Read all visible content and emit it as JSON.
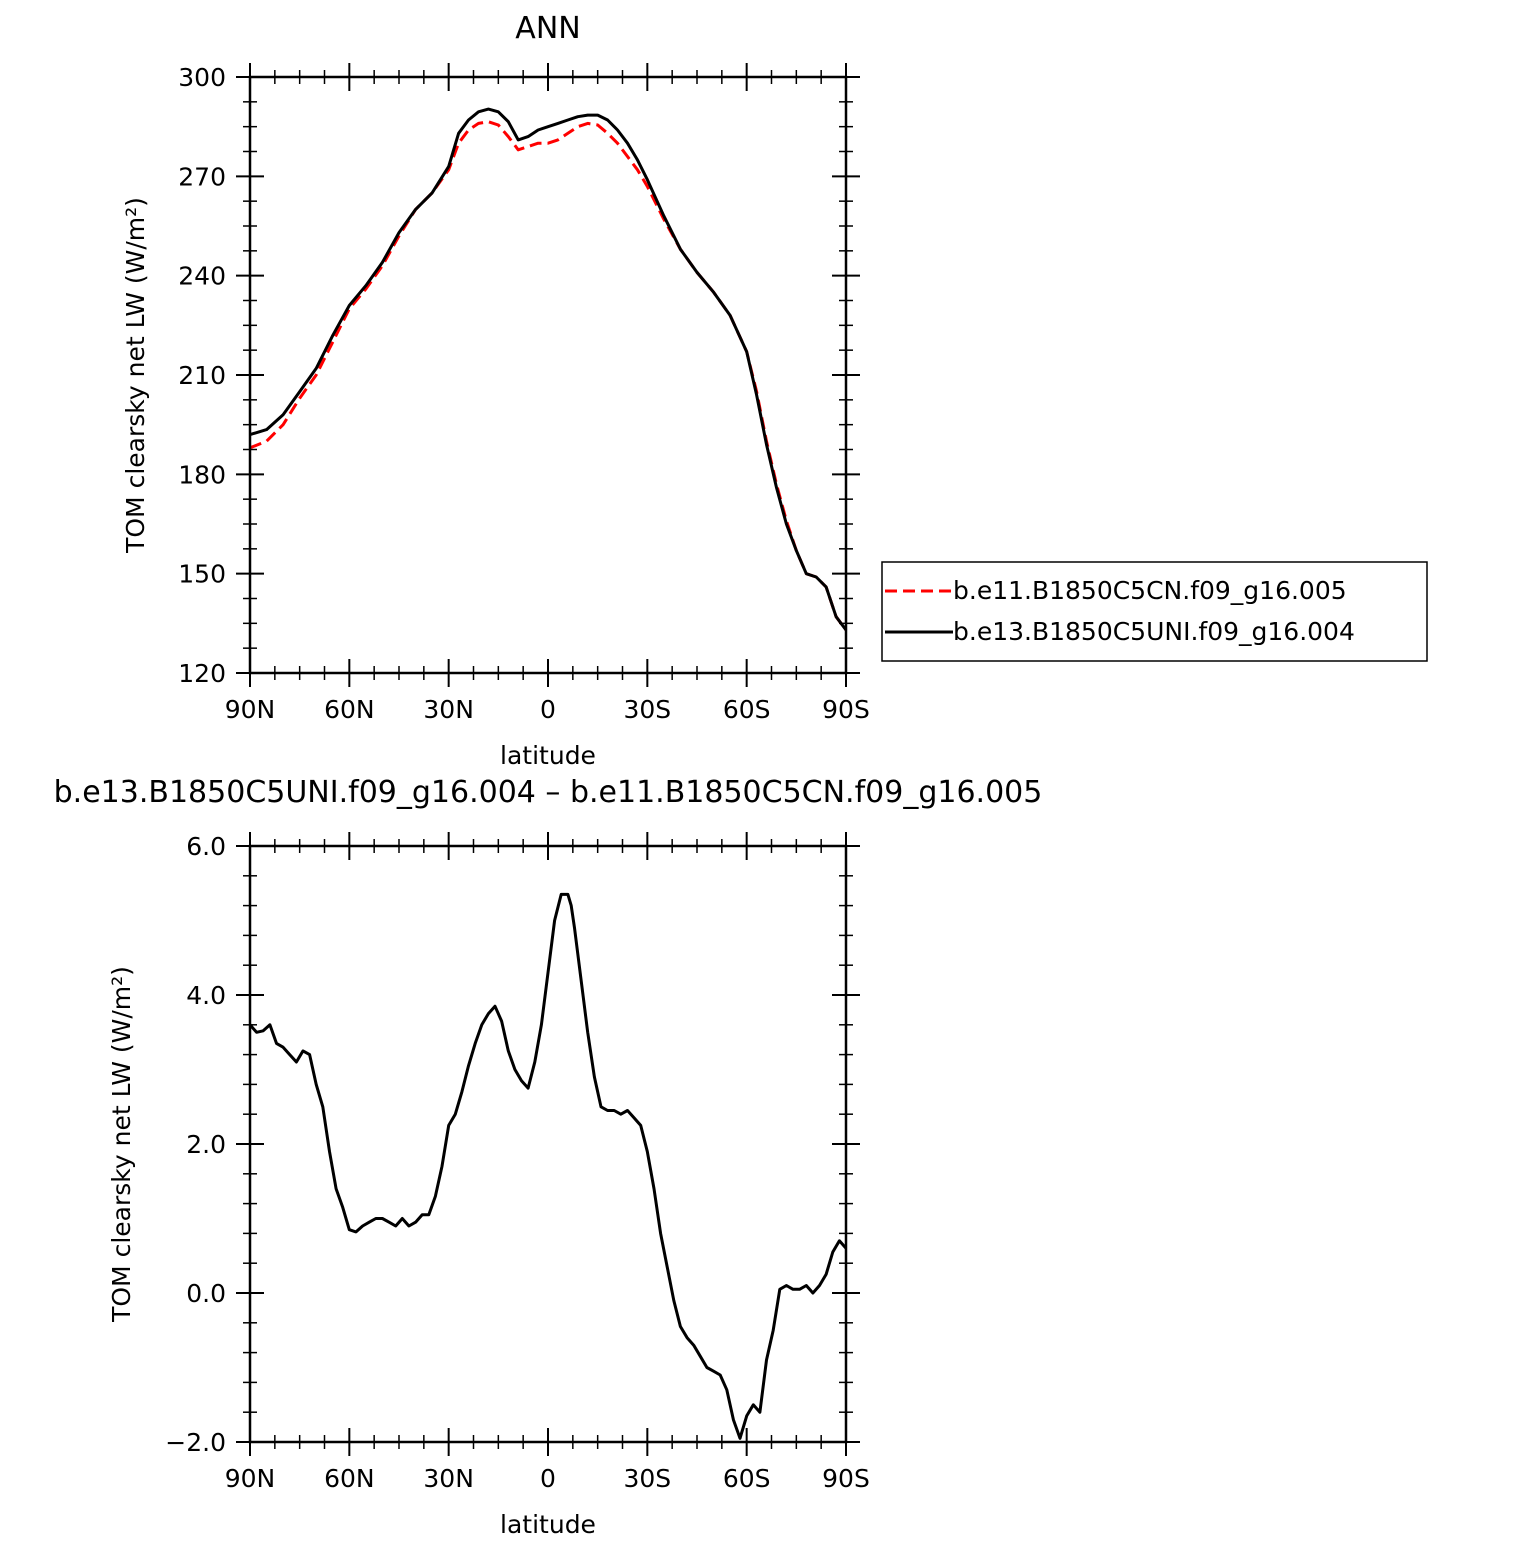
{
  "chart_data": [
    {
      "type": "line",
      "title": "ANN",
      "xlabel": "latitude",
      "ylabel": "TOM clearsky net LW (W/m²)",
      "xlim": [
        90,
        -90
      ],
      "ylim": [
        120,
        300
      ],
      "yticks": [
        "120",
        "150",
        "180",
        "210",
        "240",
        "270",
        "300"
      ],
      "xticks": [
        {
          "value": 90,
          "label": "90N"
        },
        {
          "value": 60,
          "label": "60N"
        },
        {
          "value": 30,
          "label": "30N"
        },
        {
          "value": 0,
          "label": "0"
        },
        {
          "value": -30,
          "label": "30S"
        },
        {
          "value": -60,
          "label": "60S"
        },
        {
          "value": -90,
          "label": "90S"
        }
      ],
      "legend": "right",
      "series": [
        {
          "name": "b.e11.B1850C5CN.f09_g16.005",
          "color": "#ff0000",
          "dash": "dashed",
          "x": [
            90,
            85,
            80,
            75,
            70,
            65,
            60,
            55,
            50,
            45,
            40,
            35,
            30,
            27,
            24,
            21,
            18,
            15,
            12,
            9,
            6,
            3,
            0,
            -3,
            -6,
            -9,
            -12,
            -15,
            -18,
            -21,
            -24,
            -27,
            -30,
            -35,
            -40,
            -45,
            -50,
            -55,
            -60,
            -63,
            -66,
            -69,
            -72,
            -75,
            -78,
            -81,
            -84,
            -87,
            -90
          ],
          "y": [
            188,
            190,
            195,
            203,
            210,
            220,
            230,
            236,
            243,
            252,
            260,
            265,
            272,
            280,
            284,
            286,
            286.5,
            285.5,
            282,
            278,
            279,
            280,
            280,
            281,
            283,
            285,
            286,
            285.5,
            283,
            280,
            276,
            272,
            267,
            257,
            248,
            241,
            235,
            228,
            217,
            205,
            190,
            177,
            166,
            157,
            150,
            149,
            146,
            137,
            133
          ]
        },
        {
          "name": "b.e13.B1850C5UNI.f09_g16.004",
          "color": "#000000",
          "dash": "solid",
          "x": [
            90,
            85,
            80,
            75,
            70,
            65,
            60,
            55,
            50,
            45,
            40,
            35,
            30,
            27,
            24,
            21,
            18,
            15,
            12,
            9,
            6,
            3,
            0,
            -3,
            -6,
            -9,
            -12,
            -15,
            -18,
            -21,
            -24,
            -27,
            -30,
            -35,
            -40,
            -45,
            -50,
            -55,
            -60,
            -63,
            -66,
            -69,
            -72,
            -75,
            -78,
            -81,
            -84,
            -87,
            -90
          ],
          "y": [
            192,
            193.5,
            198,
            205,
            212,
            222,
            231,
            237,
            244,
            253,
            260,
            265,
            273,
            283,
            287,
            289.5,
            290.3,
            289.5,
            286.5,
            281,
            282,
            284,
            285,
            286,
            287,
            288,
            288.5,
            288.5,
            287,
            284,
            280,
            275,
            269,
            258,
            248,
            241,
            235,
            228,
            217,
            204,
            189,
            176,
            165,
            157,
            150,
            149,
            146,
            137,
            133
          ]
        }
      ]
    },
    {
      "type": "line",
      "title": "b.e13.B1850C5UNI.f09_g16.004 – b.e11.B1850C5CN.f09_g16.005",
      "xlabel": "latitude",
      "ylabel": "TOM clearsky net LW (W/m²)",
      "xlim": [
        90,
        -90
      ],
      "ylim": [
        -2.0,
        6.0
      ],
      "yticks": [
        "−2.0",
        "0.0",
        "2.0",
        "4.0",
        "6.0"
      ],
      "xticks": [
        {
          "value": 90,
          "label": "90N"
        },
        {
          "value": 60,
          "label": "60N"
        },
        {
          "value": 30,
          "label": "30N"
        },
        {
          "value": 0,
          "label": "0"
        },
        {
          "value": -30,
          "label": "30S"
        },
        {
          "value": -60,
          "label": "60S"
        },
        {
          "value": -90,
          "label": "90S"
        }
      ],
      "series": [
        {
          "color": "#000000",
          "dash": "solid",
          "x": [
            90,
            88,
            86,
            84,
            82,
            80,
            78,
            76,
            74,
            72,
            70,
            68,
            66,
            64,
            62,
            60,
            58,
            56,
            54,
            52,
            50,
            48,
            46,
            44,
            42,
            40,
            38,
            36,
            34,
            32,
            30,
            28,
            26,
            24,
            22,
            20,
            18,
            16,
            14,
            12,
            10,
            8,
            6,
            4,
            2,
            0,
            -2,
            -4,
            -6,
            -7,
            -8,
            -10,
            -12,
            -14,
            -16,
            -18,
            -20,
            -22,
            -24,
            -26,
            -28,
            -30,
            -32,
            -34,
            -36,
            -38,
            -40,
            -42,
            -44,
            -46,
            -48,
            -50,
            -52,
            -54,
            -56,
            -58,
            -60,
            -62,
            -64,
            -66,
            -68,
            -70,
            -72,
            -74,
            -76,
            -78,
            -80,
            -82,
            -84,
            -86,
            -88,
            -90
          ],
          "y": [
            3.6,
            3.5,
            3.52,
            3.6,
            3.35,
            3.3,
            3.2,
            3.1,
            3.25,
            3.2,
            2.8,
            2.5,
            1.9,
            1.4,
            1.15,
            0.85,
            0.82,
            0.9,
            0.95,
            1.0,
            1.0,
            0.95,
            0.9,
            1.0,
            0.9,
            0.95,
            1.05,
            1.05,
            1.3,
            1.7,
            2.25,
            2.4,
            2.7,
            3.05,
            3.35,
            3.6,
            3.75,
            3.85,
            3.65,
            3.25,
            3.0,
            2.85,
            2.75,
            3.1,
            3.6,
            4.3,
            5.0,
            5.35,
            5.35,
            5.2,
            4.9,
            4.2,
            3.5,
            2.9,
            2.5,
            2.45,
            2.45,
            2.4,
            2.45,
            2.35,
            2.25,
            1.9,
            1.4,
            0.8,
            0.35,
            -0.1,
            -0.45,
            -0.6,
            -0.7,
            -0.85,
            -1.0,
            -1.05,
            -1.1,
            -1.3,
            -1.7,
            -1.95,
            -1.65,
            -1.5,
            -1.6,
            -0.9,
            -0.5,
            0.05,
            0.1,
            0.05,
            0.05,
            0.1,
            0.0,
            0.1,
            0.25,
            0.55,
            0.7,
            0.6
          ]
        }
      ]
    }
  ]
}
